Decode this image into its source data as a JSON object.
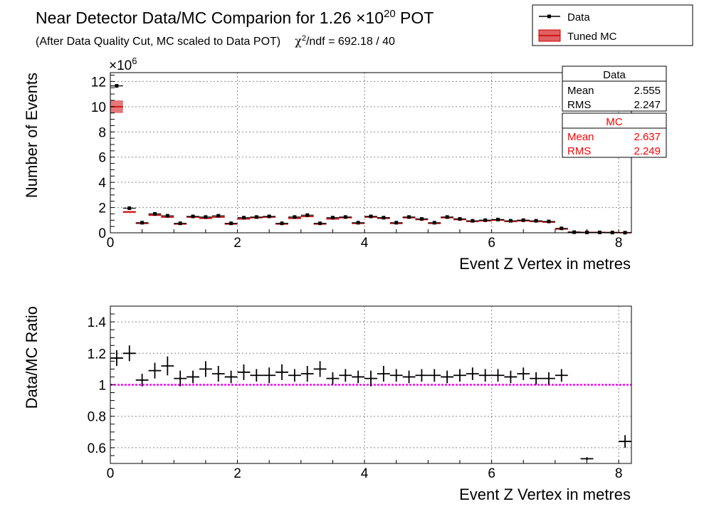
{
  "page": {
    "title_main": "Near Detector Data/MC Comparion for 1.26 ",
    "title_times": "×10",
    "title_exp": "20",
    "title_pot": " POT",
    "subtitle": "(After Data Quality Cut, MC scaled to Data POT)",
    "chi2_label": "χ",
    "chi2_exp": "2",
    "chi2_text": "/ndf = 692.18 / 40"
  },
  "legend": {
    "data_label": "Data",
    "mc_label": "Tuned MC"
  },
  "stats": {
    "data": {
      "title": "Data",
      "mean_label": "Mean",
      "mean_value": "2.555",
      "rms_label": "RMS",
      "rms_value": "2.247",
      "color": "#000000"
    },
    "mc": {
      "title": "MC",
      "mean_label": "Mean",
      "mean_value": "2.637",
      "rms_label": "RMS",
      "rms_value": "2.249",
      "color": "#ff0000"
    }
  },
  "colors": {
    "data": "#000000",
    "mc": "#cc0000",
    "mc_band": "#e06060",
    "ratio_line": "#ff00ff",
    "grid": "#888888"
  },
  "chart_data": [
    {
      "type": "bar",
      "xlabel": "Event Z Vertex in metres",
      "ylabel": "Number of Events",
      "y_multiplier_prefix": "×10",
      "y_multiplier_exp": "6",
      "xlim": [
        0,
        8.2
      ],
      "ylim": [
        0,
        12.7
      ],
      "x_ticks": [
        0,
        2,
        4,
        6,
        8
      ],
      "y_ticks": [
        0,
        2,
        4,
        6,
        8,
        10,
        12
      ],
      "grid": true,
      "legend_position": "top-right",
      "bin_width": 0.2,
      "x": [
        0.1,
        0.3,
        0.5,
        0.7,
        0.9,
        1.1,
        1.3,
        1.5,
        1.7,
        1.9,
        2.1,
        2.3,
        2.5,
        2.7,
        2.9,
        3.1,
        3.3,
        3.5,
        3.7,
        3.9,
        4.1,
        4.3,
        4.5,
        4.7,
        4.9,
        5.1,
        5.3,
        5.5,
        5.7,
        5.9,
        6.1,
        6.3,
        6.5,
        6.7,
        6.9,
        7.1,
        7.3,
        7.5,
        7.7,
        7.9,
        8.1
      ],
      "series": [
        {
          "name": "Data",
          "values": [
            11.65,
            1.95,
            0.8,
            1.5,
            1.35,
            0.75,
            1.3,
            1.25,
            1.35,
            0.75,
            1.2,
            1.25,
            1.3,
            0.75,
            1.25,
            1.4,
            0.75,
            1.2,
            1.25,
            0.8,
            1.3,
            1.2,
            0.8,
            1.25,
            1.1,
            0.8,
            1.25,
            1.1,
            0.95,
            1.0,
            1.05,
            0.95,
            1.0,
            0.95,
            0.9,
            0.35,
            0.05,
            0.03,
            0.03,
            0.02,
            0.01
          ]
        },
        {
          "name": "Tuned MC",
          "values": [
            10.0,
            1.65,
            0.75,
            1.4,
            1.25,
            0.7,
            1.25,
            1.15,
            1.25,
            0.7,
            1.1,
            1.2,
            1.25,
            0.7,
            1.15,
            1.3,
            0.7,
            1.1,
            1.2,
            0.75,
            1.25,
            1.15,
            0.75,
            1.2,
            1.05,
            0.75,
            1.2,
            1.05,
            0.9,
            0.95,
            1.0,
            0.9,
            0.95,
            0.9,
            0.85,
            0.3,
            0.05,
            0.03,
            0.03,
            0.02,
            0.01
          ]
        }
      ]
    },
    {
      "type": "scatter",
      "xlabel": "Event Z Vertex in metres",
      "ylabel": "Data/MC Ratio",
      "xlim": [
        0,
        8.2
      ],
      "ylim": [
        0.5,
        1.5
      ],
      "x_ticks": [
        0,
        2,
        4,
        6,
        8
      ],
      "y_ticks": [
        0.6,
        0.8,
        1,
        1.2,
        1.4
      ],
      "y_tick_labels": [
        "0.6",
        "0.8",
        "1",
        "1.2",
        "1.4"
      ],
      "grid": true,
      "reference_line": 1.0,
      "x_err": 0.1,
      "series": [
        {
          "name": "Data/MC",
          "x": [
            0.1,
            0.3,
            0.5,
            0.7,
            0.9,
            1.1,
            1.3,
            1.5,
            1.7,
            1.9,
            2.1,
            2.3,
            2.5,
            2.7,
            2.9,
            3.1,
            3.3,
            3.5,
            3.7,
            3.9,
            4.1,
            4.3,
            4.5,
            4.7,
            4.9,
            5.1,
            5.3,
            5.5,
            5.7,
            5.9,
            6.1,
            6.3,
            6.5,
            6.7,
            6.9,
            7.1,
            7.5,
            8.1
          ],
          "y": [
            1.17,
            1.2,
            1.03,
            1.09,
            1.12,
            1.04,
            1.05,
            1.1,
            1.07,
            1.05,
            1.08,
            1.06,
            1.06,
            1.08,
            1.06,
            1.07,
            1.1,
            1.04,
            1.06,
            1.05,
            1.04,
            1.07,
            1.06,
            1.05,
            1.06,
            1.06,
            1.05,
            1.06,
            1.07,
            1.06,
            1.06,
            1.05,
            1.07,
            1.04,
            1.04,
            1.06,
            0.53,
            0.64
          ],
          "y_err": [
            0.05,
            0.05,
            0.04,
            0.05,
            0.06,
            0.05,
            0.04,
            0.05,
            0.05,
            0.04,
            0.05,
            0.04,
            0.05,
            0.05,
            0.04,
            0.05,
            0.05,
            0.04,
            0.04,
            0.04,
            0.05,
            0.05,
            0.04,
            0.04,
            0.04,
            0.04,
            0.04,
            0.04,
            0.04,
            0.04,
            0.04,
            0.04,
            0.04,
            0.04,
            0.04,
            0.04,
            0.01,
            0.04
          ]
        }
      ]
    }
  ]
}
